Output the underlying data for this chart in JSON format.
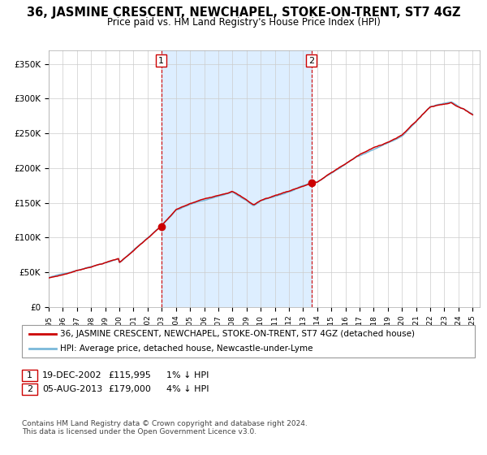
{
  "title": "36, JASMINE CRESCENT, NEWCHAPEL, STOKE-ON-TRENT, ST7 4GZ",
  "subtitle": "Price paid vs. HM Land Registry's House Price Index (HPI)",
  "ylim": [
    0,
    370000
  ],
  "yticks": [
    0,
    50000,
    100000,
    150000,
    200000,
    250000,
    300000,
    350000
  ],
  "ytick_labels": [
    "£0",
    "£50K",
    "£100K",
    "£150K",
    "£200K",
    "£250K",
    "£300K",
    "£350K"
  ],
  "xmin": 1995,
  "xmax": 2025.5,
  "shade_start_year": 2002.96,
  "shade_end_year": 2013.59,
  "sale1_year": 2002.96,
  "sale1_price": 115995,
  "sale2_year": 2013.59,
  "sale2_price": 179000,
  "legend_line1": "36, JASMINE CRESCENT, NEWCHAPEL, STOKE-ON-TRENT, ST7 4GZ (detached house)",
  "legend_line2": "HPI: Average price, detached house, Newcastle-under-Lyme",
  "table_row1": [
    "1",
    "19-DEC-2002",
    "£115,995",
    "1% ↓ HPI"
  ],
  "table_row2": [
    "2",
    "05-AUG-2013",
    "£179,000",
    "4% ↓ HPI"
  ],
  "footer": "Contains HM Land Registry data © Crown copyright and database right 2024.\nThis data is licensed under the Open Government Licence v3.0.",
  "hpi_color": "#7ab8d9",
  "price_color": "#cc0000",
  "shade_color": "#ddeeff",
  "grid_color": "#cccccc",
  "background_color": "#ffffff",
  "title_fontsize": 10.5,
  "subtitle_fontsize": 8.5,
  "tick_fontsize": 7.5,
  "legend_fontsize": 7.5,
  "annotation_fontsize": 8
}
